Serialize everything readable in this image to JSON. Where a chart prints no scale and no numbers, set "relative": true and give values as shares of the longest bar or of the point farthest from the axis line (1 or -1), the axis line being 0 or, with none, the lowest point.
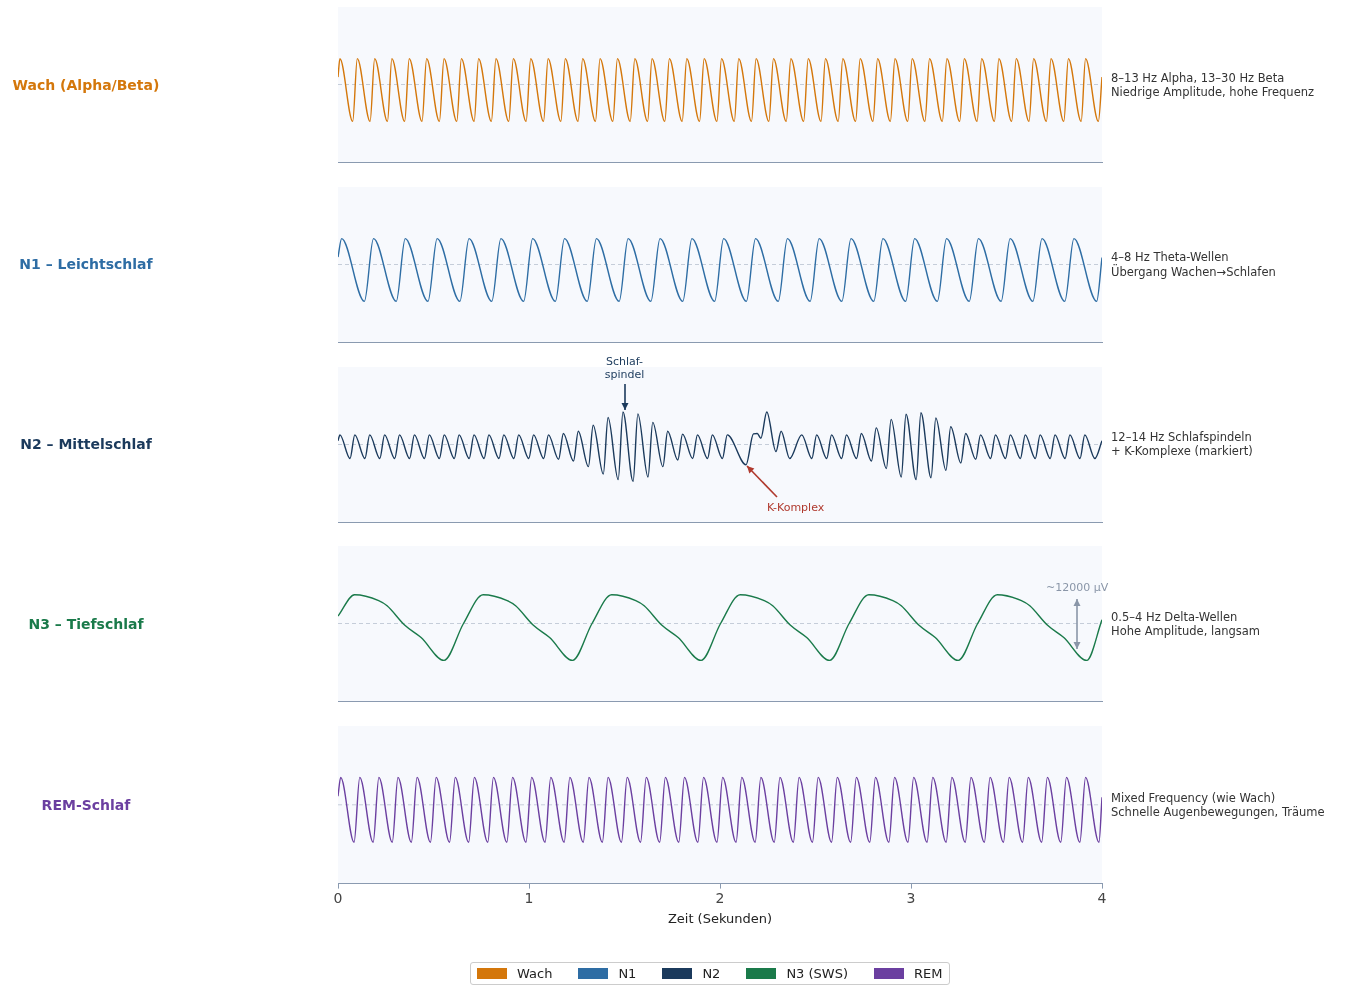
{
  "chart_data": [
    {
      "type": "line",
      "ylabel": "Wach (Alpha/Beta)",
      "relative": true,
      "xlim": [
        0,
        4
      ],
      "tick_labels": false,
      "legend": "bottom",
      "ref_lines": [
        {
          "axis": "y",
          "value": 0,
          "line_style": "dashed",
          "color": "#c5cdd9"
        }
      ],
      "annotations": [
        "8–13 Hz Alpha, 13–30 Hz Beta\nNiedrige Amplitude, hohe Frequenz"
      ],
      "series": [
        {
          "name": "Wach",
          "color": "#d4770b",
          "x": [
            0,
            0.01,
            0.077,
            0.101,
            0.168,
            0.192,
            0.259,
            0.282,
            0.349,
            0.373,
            0.44,
            0.464,
            0.531,
            0.555,
            0.622,
            0.646,
            0.713,
            0.736,
            0.803,
            0.827,
            0.894,
            0.918,
            0.985,
            1.009,
            1.076,
            1.1,
            1.167,
            1.19,
            1.257,
            1.281,
            1.348,
            1.372,
            1.439,
            1.463,
            1.53,
            1.554,
            1.621,
            1.644,
            1.711,
            1.735,
            1.802,
            1.826,
            1.893,
            1.917,
            1.984,
            2.008,
            2.075,
            2.098,
            2.165,
            2.189,
            2.256,
            2.28,
            2.347,
            2.371,
            2.438,
            2.462,
            2.529,
            2.552,
            2.619,
            2.643,
            2.71,
            2.734,
            2.801,
            2.825,
            2.892,
            2.916,
            2.983,
            3.006,
            3.073,
            3.097,
            3.164,
            3.188,
            3.255,
            3.279,
            3.346,
            3.37,
            3.437,
            3.46,
            3.527,
            3.551,
            3.618,
            3.642,
            3.709,
            3.733,
            3.8,
            3.824,
            3.891,
            3.914,
            3.981,
            4
          ],
          "values": [
            0.2,
            0.7,
            -1,
            0.7,
            -1,
            0.7,
            -1,
            0.7,
            -1,
            0.7,
            -1,
            0.7,
            -1,
            0.7,
            -1,
            0.7,
            -1,
            0.7,
            -1,
            0.7,
            -1,
            0.7,
            -1,
            0.7,
            -1,
            0.7,
            -1,
            0.7,
            -1,
            0.7,
            -1,
            0.7,
            -1,
            0.7,
            -1,
            0.7,
            -1,
            0.7,
            -1,
            0.7,
            -1,
            0.7,
            -1,
            0.7,
            -1,
            0.7,
            -1,
            0.7,
            -1,
            0.7,
            -1,
            0.7,
            -1,
            0.7,
            -1,
            0.7,
            -1,
            0.7,
            -1,
            0.7,
            -1,
            0.7,
            -1,
            0.7,
            -1,
            0.7,
            -1,
            0.7,
            -1,
            0.7,
            -1,
            0.7,
            -1,
            0.7,
            -1,
            0.7,
            -1,
            0.7,
            -1,
            0.7,
            -1,
            0.7,
            -1,
            0.7,
            -1,
            0.7,
            -1,
            0.7,
            -1,
            0.2
          ]
        }
      ]
    },
    {
      "type": "line",
      "ylabel": "N1 – Leichtschlaf",
      "relative": true,
      "xlim": [
        0,
        4
      ],
      "tick_labels": false,
      "legend": "bottom",
      "ref_lines": [
        {
          "axis": "y",
          "value": 0,
          "line_style": "dashed",
          "color": "#c5cdd9"
        }
      ],
      "annotations": [
        "4–8 Hz Theta-Wellen\nÜbergang Wachen→Schlafen"
      ],
      "series": [
        {
          "name": "N1",
          "color": "#2e6da4",
          "x": [
            0,
            0.019,
            0.138,
            0.186,
            0.305,
            0.352,
            0.471,
            0.519,
            0.638,
            0.686,
            0.805,
            0.853,
            0.972,
            1.019,
            1.138,
            1.186,
            1.305,
            1.353,
            1.472,
            1.519,
            1.638,
            1.686,
            1.805,
            1.853,
            1.972,
            2.019,
            2.138,
            2.186,
            2.305,
            2.353,
            2.472,
            2.519,
            2.638,
            2.686,
            2.805,
            2.853,
            2.972,
            3.019,
            3.138,
            3.186,
            3.305,
            3.353,
            3.472,
            3.519,
            3.638,
            3.686,
            3.805,
            3.853,
            3.972,
            4
          ],
          "values": [
            0.2,
            0.7,
            -1,
            0.7,
            -1,
            0.7,
            -1,
            0.7,
            -1,
            0.7,
            -1,
            0.7,
            -1,
            0.7,
            -1,
            0.7,
            -1,
            0.7,
            -1,
            0.7,
            -1,
            0.7,
            -1,
            0.7,
            -1,
            0.7,
            -1,
            0.7,
            -1,
            0.7,
            -1,
            0.7,
            -1,
            0.7,
            -1,
            0.7,
            -1,
            0.7,
            -1,
            0.7,
            -1,
            0.7,
            -1,
            0.7,
            -1,
            0.7,
            -1,
            0.7,
            -1,
            0.19
          ]
        }
      ]
    },
    {
      "type": "line",
      "ylabel": "N2 – Mittelschlaf",
      "relative": true,
      "xlim": [
        0,
        4
      ],
      "tick_labels": false,
      "legend": "bottom",
      "ref_lines": [
        {
          "axis": "y",
          "value": 0,
          "line_style": "dashed",
          "color": "#c5cdd9"
        }
      ],
      "annotations": [
        "12–14 Hz Schlafspindeln\n+ K-Komplexe (markiert)",
        {
          "text": "Schlaf-\nspindel",
          "x": 1.5,
          "y": 0.88
        },
        {
          "text": "K-Komplex",
          "x": 2.136,
          "y": -0.55
        }
      ],
      "series": [
        {
          "name": "N2",
          "color": "#1b3a5c",
          "x": [
            0,
            0.01,
            0.063,
            0.088,
            0.141,
            0.166,
            0.219,
            0.244,
            0.297,
            0.322,
            0.375,
            0.4,
            0.453,
            0.478,
            0.531,
            0.556,
            0.609,
            0.634,
            0.687,
            0.712,
            0.765,
            0.79,
            0.843,
            0.868,
            0.921,
            0.946,
            0.999,
            1.024,
            1.077,
            1.102,
            1.155,
            1.18,
            1.233,
            1.258,
            1.311,
            1.336,
            1.389,
            1.414,
            1.467,
            1.492,
            1.545,
            1.57,
            1.623,
            1.648,
            1.701,
            1.726,
            1.779,
            1.804,
            1.857,
            1.882,
            1.935,
            1.96,
            2.013,
            2.038,
            2.136,
            2.175,
            2.195,
            2.214,
            2.245,
            2.293,
            2.32,
            2.365,
            2.428,
            2.481,
            2.506,
            2.559,
            2.584,
            2.637,
            2.662,
            2.715,
            2.74,
            2.793,
            2.818,
            2.871,
            2.896,
            2.949,
            2.974,
            3.027,
            3.052,
            3.105,
            3.13,
            3.183,
            3.208,
            3.261,
            3.286,
            3.339,
            3.364,
            3.417,
            3.442,
            3.495,
            3.52,
            3.573,
            3.598,
            3.651,
            3.676,
            3.729,
            3.754,
            3.807,
            3.832,
            3.885,
            3.91,
            3.963,
            4
          ],
          "values": [
            0.1,
            0.26,
            -0.38,
            0.26,
            -0.38,
            0.26,
            -0.38,
            0.26,
            -0.38,
            0.26,
            -0.38,
            0.26,
            -0.38,
            0.26,
            -0.38,
            0.26,
            -0.38,
            0.26,
            -0.38,
            0.26,
            -0.38,
            0.26,
            -0.38,
            0.26,
            -0.38,
            0.26,
            -0.38,
            0.26,
            -0.38,
            0.26,
            -0.4,
            0.3,
            -0.45,
            0.36,
            -0.6,
            0.52,
            -0.8,
            0.73,
            -0.95,
            0.88,
            -1,
            0.83,
            -0.88,
            0.6,
            -0.6,
            0.36,
            -0.42,
            0.28,
            -0.38,
            0.26,
            -0.38,
            0.26,
            -0.38,
            0.26,
            -0.55,
            0.29,
            0.3,
            0.17,
            0.88,
            -0.19,
            0.36,
            -0.38,
            0.26,
            -0.38,
            0.26,
            -0.38,
            0.26,
            -0.38,
            0.26,
            -0.38,
            0.3,
            -0.45,
            0.45,
            -0.65,
            0.68,
            -0.88,
            0.82,
            -0.95,
            0.86,
            -0.9,
            0.72,
            -0.7,
            0.48,
            -0.5,
            0.3,
            -0.4,
            0.26,
            -0.38,
            0.26,
            -0.38,
            0.26,
            -0.38,
            0.26,
            -0.38,
            0.26,
            -0.38,
            0.26,
            -0.38,
            0.26,
            -0.38,
            0.26,
            -0.38,
            0.1
          ]
        }
      ]
    },
    {
      "type": "line",
      "ylabel": "N3 – Tiefschlaf",
      "relative": true,
      "xlim": [
        0,
        4
      ],
      "tick_labels": false,
      "legend": "bottom",
      "ref_lines": [
        {
          "axis": "y",
          "value": 0,
          "line_style": "dashed",
          "color": "#c5cdd9"
        }
      ],
      "annotations": [
        "0.5–4 Hz Delta-Wellen\nHohe Amplitude, langsam",
        {
          "text": "~12000 µV",
          "x": 3.87,
          "y": 0
        }
      ],
      "series": [
        {
          "name": "N3 (SWS)",
          "color": "#1a7a4a",
          "x": [
            0,
            0.087,
            0.213,
            0.257,
            0.35,
            0.435,
            0.555,
            0.657,
            0.76,
            0.886,
            0.93,
            1.023,
            1.108,
            1.228,
            1.33,
            1.433,
            1.559,
            1.603,
            1.696,
            1.781,
            1.901,
            2.003,
            2.106,
            2.232,
            2.276,
            2.369,
            2.454,
            2.574,
            2.676,
            2.779,
            2.905,
            2.949,
            3.042,
            3.127,
            3.247,
            3.349,
            3.452,
            3.578,
            3.622,
            3.715,
            3.8,
            3.92,
            4
          ],
          "values": [
            0.2,
            0.78,
            0.62,
            0.48,
            -0.05,
            -0.38,
            -1,
            0,
            0.78,
            0.62,
            0.48,
            -0.05,
            -0.38,
            -1,
            0,
            0.78,
            0.62,
            0.48,
            -0.05,
            -0.38,
            -1,
            0,
            0.78,
            0.62,
            0.48,
            -0.05,
            -0.38,
            -1,
            0,
            0.78,
            0.62,
            0.48,
            -0.05,
            -0.38,
            -1,
            0,
            0.78,
            0.62,
            0.48,
            -0.05,
            -0.38,
            -1,
            0.1
          ]
        }
      ]
    },
    {
      "type": "line",
      "ylabel": "REM-Schlaf",
      "xlabel": "Zeit (Sekunden)",
      "relative": true,
      "xlim": [
        0,
        4
      ],
      "xticks": [
        0,
        1,
        2,
        3,
        4
      ],
      "tick_labels": "x",
      "legend": "bottom",
      "ref_lines": [
        {
          "axis": "y",
          "value": 0,
          "line_style": "dashed",
          "color": "#c5cdd9"
        }
      ],
      "annotations": [
        "Mixed Frequency (wie Wach)\nSchnelle Augenbewegungen, Träume"
      ],
      "series": [
        {
          "name": "REM",
          "color": "#6b3fa0",
          "x": [
            0,
            0.014,
            0.084,
            0.114,
            0.184,
            0.214,
            0.284,
            0.314,
            0.384,
            0.414,
            0.484,
            0.514,
            0.584,
            0.614,
            0.684,
            0.714,
            0.784,
            0.814,
            0.884,
            0.914,
            0.984,
            1.014,
            1.084,
            1.114,
            1.184,
            1.214,
            1.284,
            1.314,
            1.384,
            1.414,
            1.484,
            1.514,
            1.584,
            1.614,
            1.684,
            1.714,
            1.784,
            1.814,
            1.884,
            1.914,
            1.984,
            2.014,
            2.084,
            2.114,
            2.184,
            2.214,
            2.284,
            2.314,
            2.384,
            2.414,
            2.484,
            2.514,
            2.584,
            2.614,
            2.684,
            2.714,
            2.784,
            2.814,
            2.884,
            2.914,
            2.984,
            3.014,
            3.084,
            3.114,
            3.184,
            3.214,
            3.284,
            3.314,
            3.384,
            3.414,
            3.484,
            3.514,
            3.584,
            3.614,
            3.684,
            3.714,
            3.784,
            3.814,
            3.884,
            3.914,
            3.984,
            4
          ],
          "values": [
            0.23,
            0.73,
            -1,
            0.73,
            -1,
            0.73,
            -1,
            0.73,
            -1,
            0.73,
            -1,
            0.73,
            -1,
            0.73,
            -1,
            0.73,
            -1,
            0.73,
            -1,
            0.73,
            -1,
            0.73,
            -1,
            0.73,
            -1,
            0.73,
            -1,
            0.73,
            -1,
            0.73,
            -1,
            0.73,
            -1,
            0.73,
            -1,
            0.73,
            -1,
            0.73,
            -1,
            0.73,
            -1,
            0.73,
            -1,
            0.73,
            -1,
            0.73,
            -1,
            0.73,
            -1,
            0.73,
            -1,
            0.73,
            -1,
            0.73,
            -1,
            0.73,
            -1,
            0.73,
            -1,
            0.73,
            -1,
            0.73,
            -1,
            0.73,
            -1,
            0.73,
            -1,
            0.73,
            -1,
            0.73,
            -1,
            0.73,
            -1,
            0.73,
            -1,
            0.73,
            -1,
            0.73,
            -1,
            0.73,
            -1,
            0.2
          ]
        }
      ]
    }
  ]
}
